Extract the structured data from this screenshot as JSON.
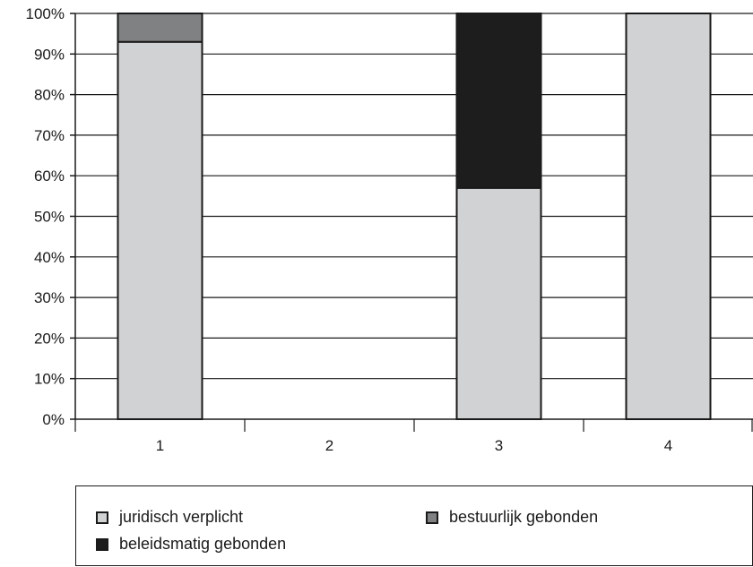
{
  "chart_data": {
    "type": "bar",
    "stacked": true,
    "categories": [
      "1",
      "2",
      "3",
      "4"
    ],
    "y_ticks": [
      "0%",
      "10%",
      "20%",
      "30%",
      "40%",
      "50%",
      "60%",
      "70%",
      "80%",
      "90%",
      "100%"
    ],
    "ylim": [
      0,
      100
    ],
    "grid": true,
    "legend_placement": "bottom",
    "series": [
      {
        "name": "juridisch verplicht",
        "color": "#d1d2d4",
        "values": [
          93,
          0,
          57,
          100
        ]
      },
      {
        "name": "bestuurlijk gebonden",
        "color": "#808183",
        "values": [
          7,
          0,
          0,
          0
        ]
      },
      {
        "name": "beleidsmatig gebonden",
        "color": "#1d1d1d",
        "values": [
          0,
          0,
          43,
          0
        ]
      }
    ]
  }
}
